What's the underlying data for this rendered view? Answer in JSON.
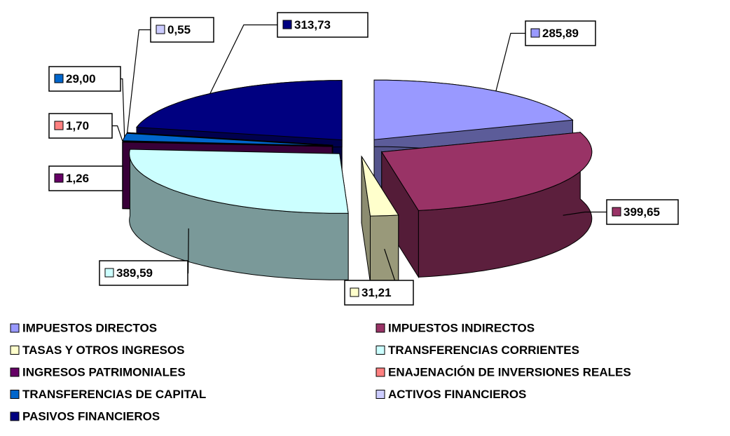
{
  "chart_data": {
    "type": "pie",
    "categories": [
      "IMPUESTOS DIRECTOS",
      "IMPUESTOS INDIRECTOS",
      "TASAS Y OTROS INGRESOS",
      "TRANSFERENCIAS CORRIENTES",
      "INGRESOS PATRIMONIALES",
      "ENAJENACIÓN DE INVERSIONES REALES",
      "TRANSFERENCIAS DE CAPITAL",
      "ACTIVOS FINANCIEROS",
      "PASIVOS FINANCIEROS"
    ],
    "values": [
      285.89,
      399.65,
      31.21,
      389.59,
      1.26,
      1.7,
      29.0,
      0.55,
      313.73
    ],
    "value_labels": [
      "285,89",
      "399,65",
      "31,21",
      "389,59",
      "1,26",
      "1,70",
      "29,00",
      "0,55",
      "313,73"
    ],
    "colors": [
      "#9999ff",
      "#993366",
      "#ffffcc",
      "#ccffff",
      "#660066",
      "#ff8080",
      "#0066cc",
      "#ccccff",
      "#000080"
    ]
  }
}
